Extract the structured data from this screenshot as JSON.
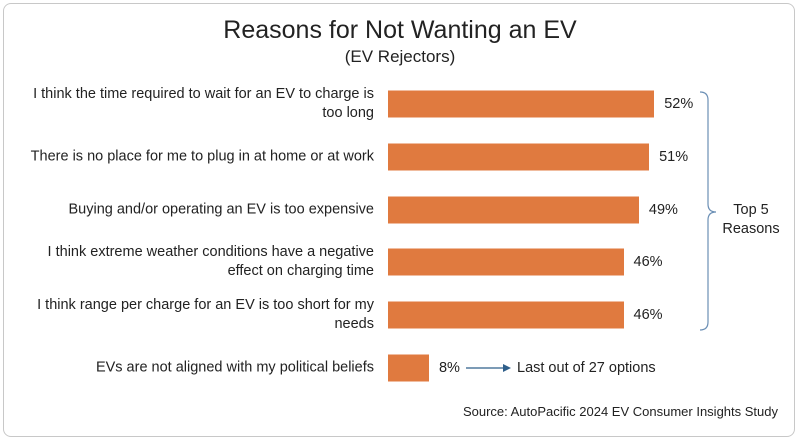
{
  "chart_data": {
    "type": "bar",
    "orientation": "horizontal",
    "title": "Reasons for Not Wanting an EV",
    "subtitle": "(EV Rejectors)",
    "categories": [
      "I think the time required to wait for an EV to charge is too long",
      "There is no place for me to plug in at home or at work",
      "Buying and/or operating an EV is too expensive",
      "I think extreme weather conditions have a negative effect on charging time",
      "I think range per charge for an EV is too short for my needs",
      "EVs are not aligned with my political beliefs"
    ],
    "values": [
      52,
      51,
      49,
      46,
      46,
      8
    ],
    "value_labels": [
      "52%",
      "51%",
      "49%",
      "46%",
      "46%",
      "8%"
    ],
    "color": "#e07a3f",
    "annotations": [
      "Top 5 Reasons",
      "Last out of 27 options"
    ],
    "source": "Source: AutoPacific 2024 EV Consumer Insights Study"
  }
}
